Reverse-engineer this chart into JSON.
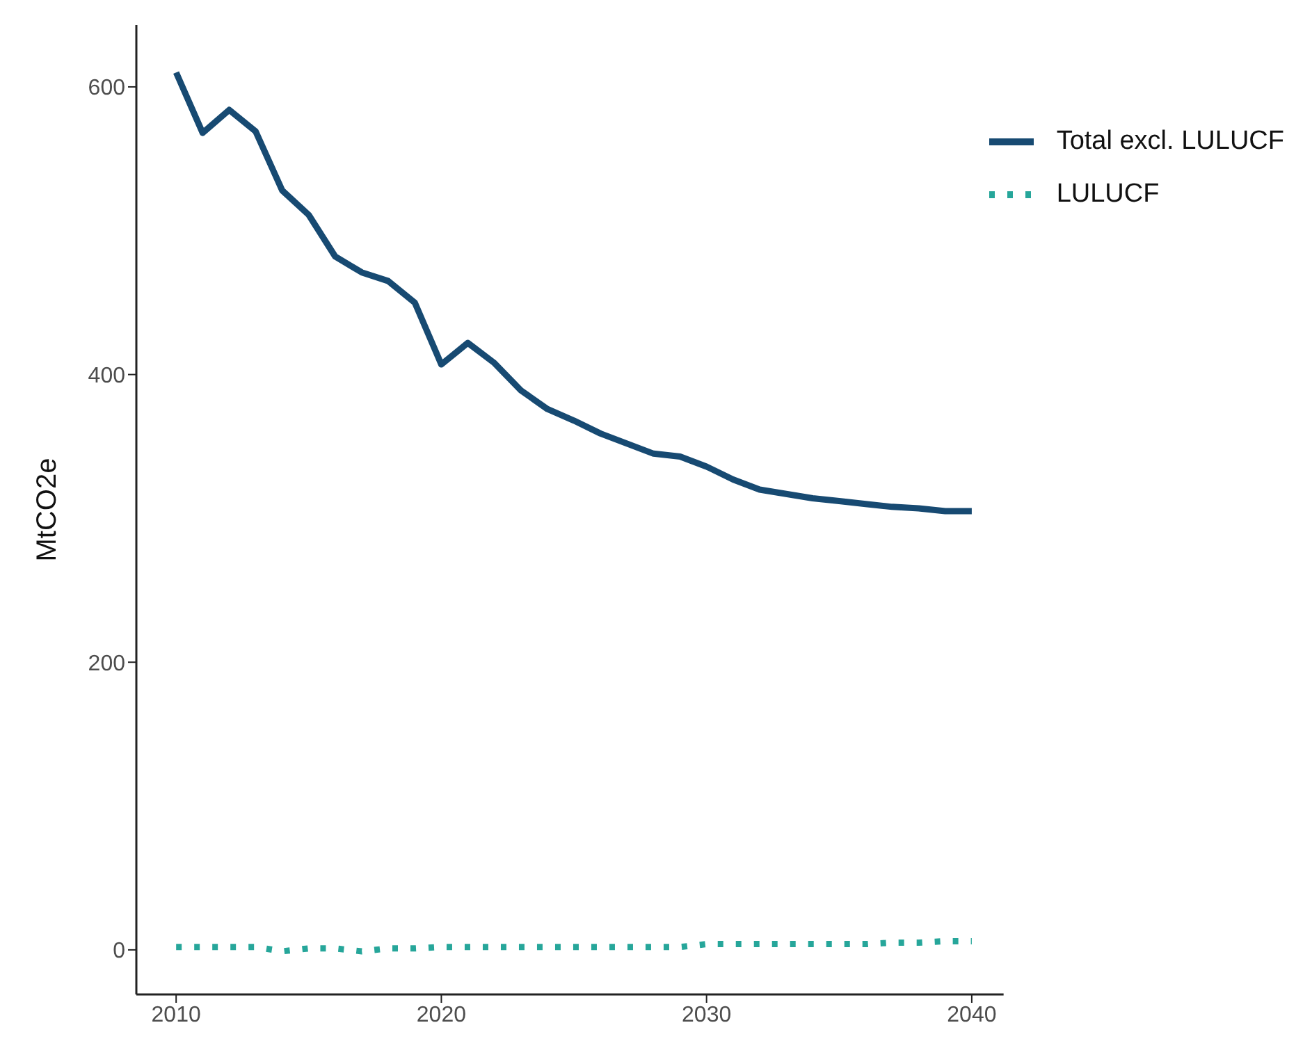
{
  "chart_data": {
    "type": "line",
    "ylabel": "MtCO2e",
    "x": [
      2010,
      2011,
      2012,
      2013,
      2014,
      2015,
      2016,
      2017,
      2018,
      2019,
      2020,
      2021,
      2022,
      2023,
      2024,
      2025,
      2026,
      2027,
      2028,
      2029,
      2030,
      2031,
      2032,
      2033,
      2034,
      2035,
      2036,
      2037,
      2038,
      2039,
      2040
    ],
    "series": [
      {
        "name": "Total excl. LULUCF",
        "color": "#174a72",
        "line_style": "solid",
        "values": [
          610,
          568,
          584,
          569,
          528,
          511,
          482,
          471,
          465,
          450,
          407,
          422,
          408,
          389,
          376,
          368,
          359,
          352,
          345,
          343,
          336,
          327,
          320,
          317,
          314,
          312,
          310,
          308,
          307,
          305,
          305
        ]
      },
      {
        "name": "LULUCF",
        "color": "#26a69a",
        "line_style": "dotted",
        "values": [
          2,
          2,
          2,
          2,
          -1,
          1,
          1,
          -1,
          1,
          1,
          2,
          2,
          2,
          2,
          2,
          2,
          2,
          2,
          2,
          2,
          4,
          4,
          4,
          4,
          4,
          4,
          4,
          5,
          5,
          6,
          6
        ]
      }
    ],
    "xlim": [
      2008.5,
      2041.2
    ],
    "xticks": [
      2010,
      2020,
      2030,
      2040
    ],
    "ylim": [
      -31,
      643
    ],
    "yticks": [
      0,
      200,
      400,
      600
    ],
    "grid": false,
    "legend": "top right",
    "marker": "none"
  }
}
